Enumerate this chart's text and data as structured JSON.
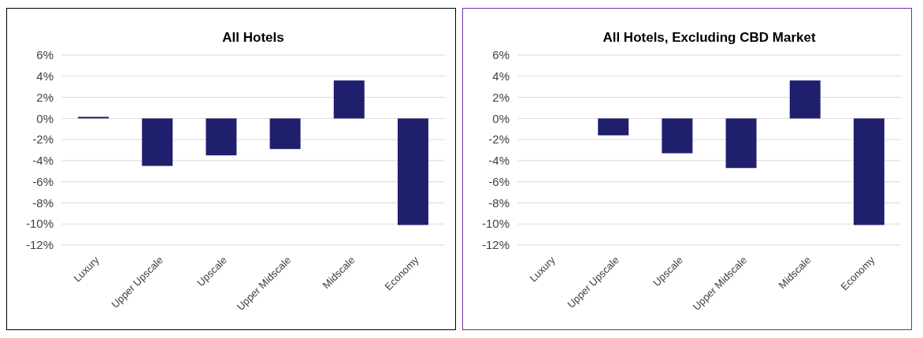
{
  "chart_data": [
    {
      "type": "bar",
      "title": "All Hotels",
      "categories": [
        "Luxury",
        "Upper Upscale",
        "Upscale",
        "Upper Midscale",
        "Midscale",
        "Economy"
      ],
      "values": [
        0.15,
        -4.5,
        -3.5,
        -2.9,
        3.6,
        -10.1
      ],
      "color": "#1f1f6e",
      "ylim": [
        -12,
        6
      ],
      "yticks": [
        {
          "value": -12,
          "label": "-12%"
        },
        {
          "value": -10,
          "label": "-10%"
        },
        {
          "value": -8,
          "label": "-8%"
        },
        {
          "value": -6,
          "label": "-6%"
        },
        {
          "value": -4,
          "label": "-4%"
        },
        {
          "value": -2,
          "label": "-2%"
        },
        {
          "value": 0,
          "label": "0%"
        },
        {
          "value": 2,
          "label": "2%"
        },
        {
          "value": 4,
          "label": "4%"
        },
        {
          "value": 6,
          "label": "6%"
        }
      ],
      "grid": "y"
    },
    {
      "type": "bar",
      "title": "All Hotels, Excluding CBD Market",
      "categories": [
        "Luxury",
        "Upper Upscale",
        "Upscale",
        "Upper Midscale",
        "Midscale",
        "Economy"
      ],
      "values": [
        null,
        -1.6,
        -3.3,
        -4.7,
        3.6,
        -10.1
      ],
      "color": "#1f1f6e",
      "ylim": [
        -12,
        6
      ],
      "yticks": [
        {
          "value": -12,
          "label": "-12%"
        },
        {
          "value": -10,
          "label": "-10%"
        },
        {
          "value": -8,
          "label": "-8%"
        },
        {
          "value": -6,
          "label": "-6%"
        },
        {
          "value": -4,
          "label": "-4%"
        },
        {
          "value": -2,
          "label": "-2%"
        },
        {
          "value": 0,
          "label": "0%"
        },
        {
          "value": 2,
          "label": "2%"
        },
        {
          "value": 4,
          "label": "4%"
        },
        {
          "value": 6,
          "label": "6%"
        }
      ],
      "grid": "y"
    }
  ]
}
